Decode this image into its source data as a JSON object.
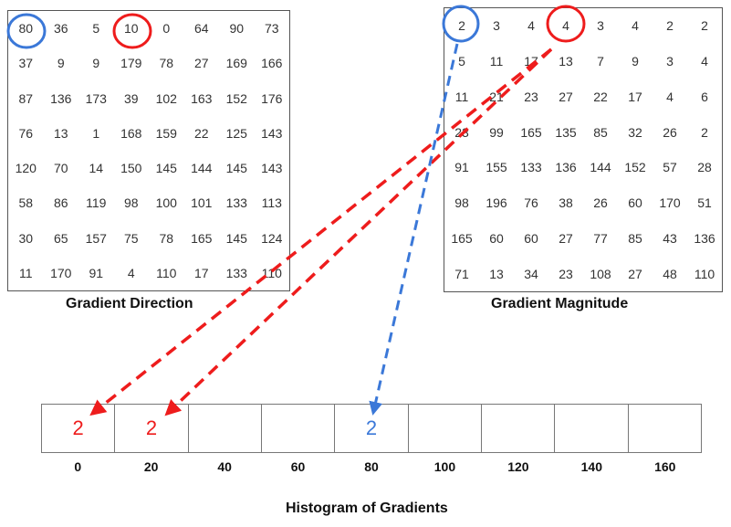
{
  "direction": {
    "caption": "Gradient Direction",
    "grid": [
      [
        "80",
        "36",
        "5",
        "10",
        "0",
        "64",
        "90",
        "73"
      ],
      [
        "37",
        "9",
        "9",
        "179",
        "78",
        "27",
        "169",
        "166"
      ],
      [
        "87",
        "136",
        "173",
        "39",
        "102",
        "163",
        "152",
        "176"
      ],
      [
        "76",
        "13",
        "1",
        "168",
        "159",
        "22",
        "125",
        "143"
      ],
      [
        "120",
        "70",
        "14",
        "150",
        "145",
        "144",
        "145",
        "143"
      ],
      [
        "58",
        "86",
        "119",
        "98",
        "100",
        "101",
        "133",
        "113"
      ],
      [
        "30",
        "65",
        "157",
        "75",
        "78",
        "165",
        "145",
        "124"
      ],
      [
        "11",
        "170",
        "91",
        "4",
        "110",
        "17",
        "133",
        "110"
      ]
    ]
  },
  "magnitude": {
    "caption": "Gradient Magnitude",
    "grid": [
      [
        "2",
        "3",
        "4",
        "4",
        "3",
        "4",
        "2",
        "2"
      ],
      [
        "5",
        "11",
        "17",
        "13",
        "7",
        "9",
        "3",
        "4"
      ],
      [
        "11",
        "21",
        "23",
        "27",
        "22",
        "17",
        "4",
        "6"
      ],
      [
        "23",
        "99",
        "165",
        "135",
        "85",
        "32",
        "26",
        "2"
      ],
      [
        "91",
        "155",
        "133",
        "136",
        "144",
        "152",
        "57",
        "28"
      ],
      [
        "98",
        "196",
        "76",
        "38",
        "26",
        "60",
        "170",
        "51"
      ],
      [
        "165",
        "60",
        "60",
        "27",
        "77",
        "85",
        "43",
        "136"
      ],
      [
        "71",
        "13",
        "34",
        "23",
        "108",
        "27",
        "48",
        "110"
      ]
    ]
  },
  "histogram": {
    "caption": "Histogram of Gradients",
    "bins": [
      "0",
      "20",
      "40",
      "60",
      "80",
      "100",
      "120",
      "140",
      "160"
    ],
    "bin_values": [
      "2",
      "2",
      "",
      "",
      "2",
      "",
      "",
      "",
      ""
    ]
  },
  "colors": {
    "red": "#ee1c1c",
    "blue": "#3b78d8"
  }
}
